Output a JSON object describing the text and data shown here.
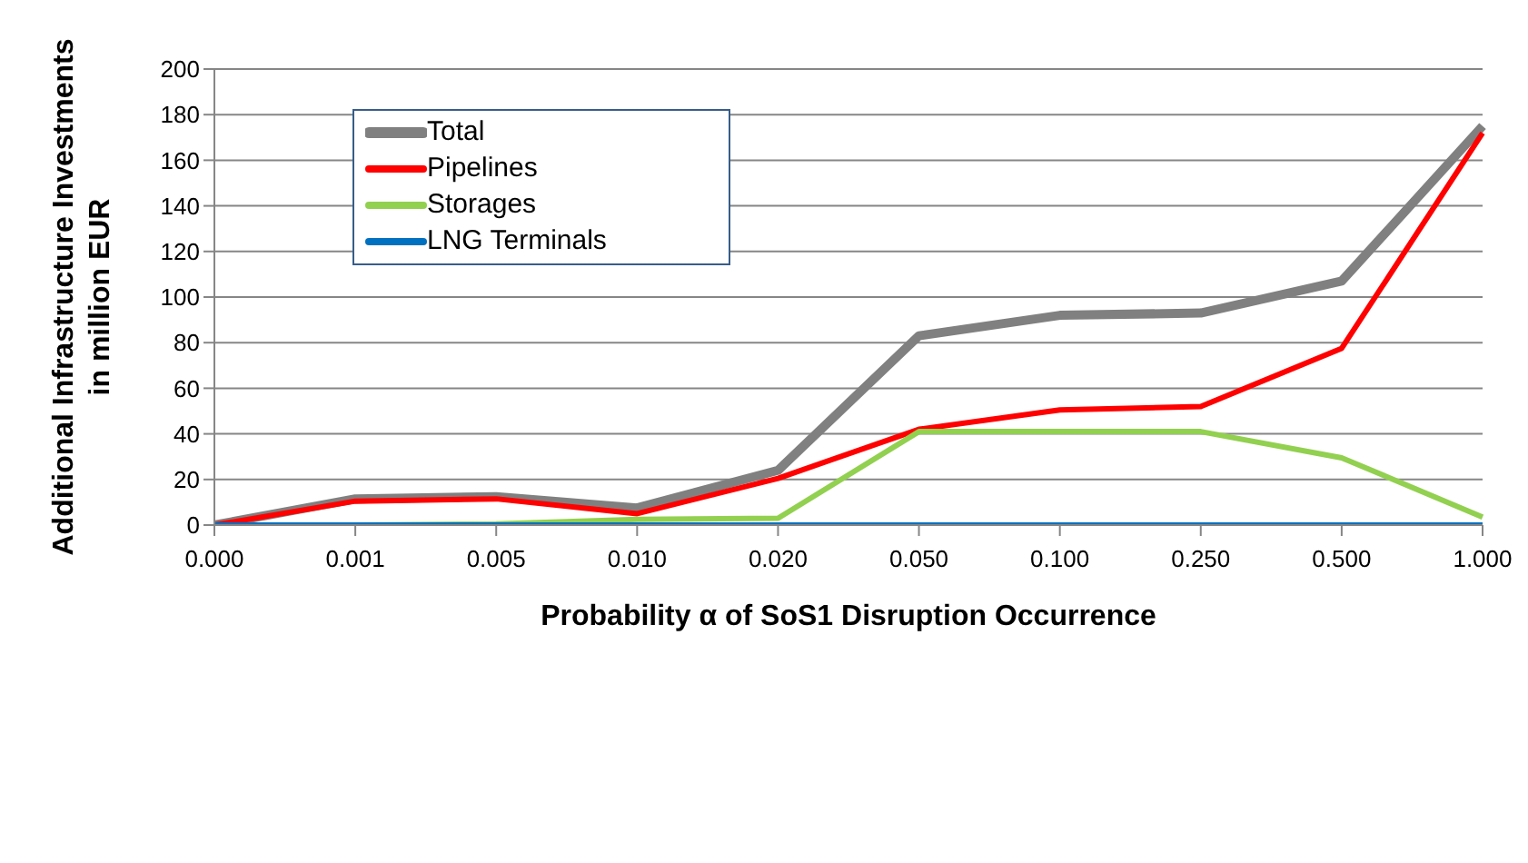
{
  "chart_data": {
    "type": "line",
    "xlabel": "Probability α of SoS1 Disruption Occurrence",
    "ylabel": "Additional Infrastructure Investments in million EUR",
    "categories": [
      "0.000",
      "0.001",
      "0.005",
      "0.010",
      "0.020",
      "0.050",
      "0.100",
      "0.250",
      "0.500",
      "1.000"
    ],
    "series": [
      {
        "name": "Total",
        "color": "#808080",
        "values": [
          0,
          11.5,
          12.5,
          7.5,
          24,
          83,
          92,
          93,
          107,
          175
        ]
      },
      {
        "name": "Pipelines",
        "color": "#ff0000",
        "values": [
          0,
          10.5,
          11.5,
          5,
          20.5,
          42,
          50.5,
          52,
          77.5,
          172
        ]
      },
      {
        "name": "Storages",
        "color": "#92d050",
        "values": [
          0,
          0,
          0.5,
          2.5,
          3,
          41,
          41,
          41,
          29.5,
          3.5
        ]
      },
      {
        "name": "LNG Terminals",
        "color": "#0070c0",
        "values": [
          0,
          0,
          0,
          0,
          0,
          0,
          0,
          0,
          0,
          0
        ]
      }
    ],
    "ylim": [
      0,
      200
    ],
    "yticks": [
      0,
      20,
      40,
      60,
      80,
      100,
      120,
      140,
      160,
      180,
      200
    ],
    "grid": "y",
    "legend": "top left",
    "marker": "none",
    "line_style": "solid"
  }
}
